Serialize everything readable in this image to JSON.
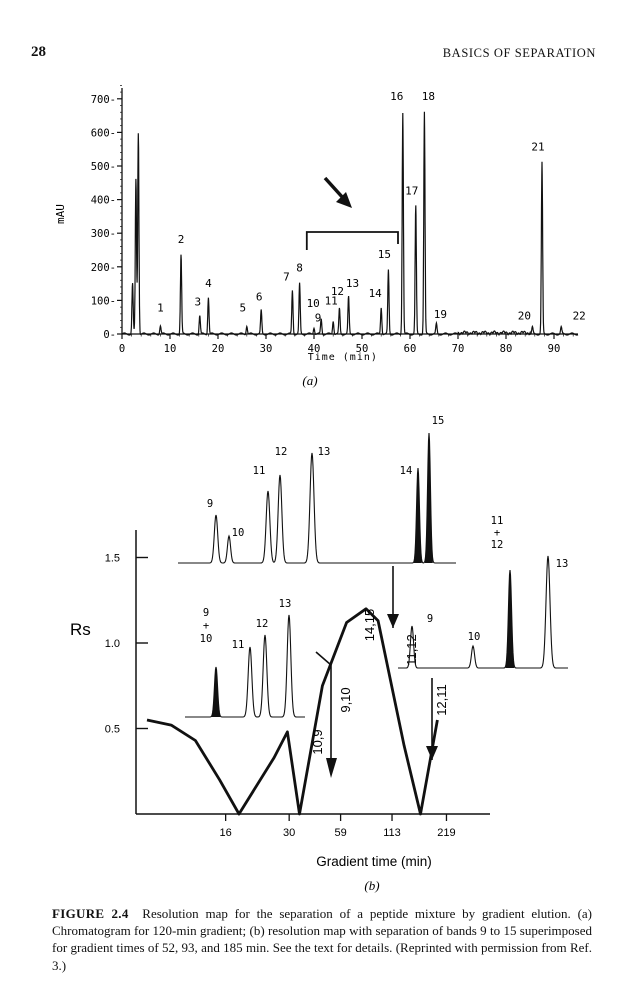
{
  "header": {
    "page_number": "28",
    "running_title": "BASICS OF SEPARATION"
  },
  "chart_data": [
    {
      "type": "line",
      "panel_label": "(a)",
      "xlabel": "Time (min)",
      "ylabel": "mAU",
      "xlim": [
        0,
        95
      ],
      "ylim": [
        0,
        750
      ],
      "x_ticks": [
        "0",
        "10",
        "20",
        "30",
        "40",
        "50",
        "60",
        "70",
        "80",
        "90"
      ],
      "x_tick_values": [
        0,
        10,
        20,
        30,
        40,
        50,
        60,
        70,
        80,
        90
      ],
      "y_ticks": [
        "0",
        "100",
        "200",
        "300",
        "400",
        "500",
        "600",
        "700"
      ],
      "y_tick_values": [
        0,
        100,
        200,
        300,
        400,
        500,
        600,
        700
      ],
      "peaks": [
        {
          "t": 2.2,
          "h": 150,
          "label": ""
        },
        {
          "t": 2.9,
          "h": 460,
          "label": ""
        },
        {
          "t": 3.4,
          "h": 600,
          "label": ""
        },
        {
          "t": 8.0,
          "h": 25,
          "label": "1"
        },
        {
          "t": 12.3,
          "h": 235,
          "label": "2"
        },
        {
          "t": 16.2,
          "h": 55,
          "label": "3"
        },
        {
          "t": 18.0,
          "h": 110,
          "label": "4"
        },
        {
          "t": 26.0,
          "h": 25,
          "label": "5"
        },
        {
          "t": 29.0,
          "h": 70,
          "label": "6"
        },
        {
          "t": 35.5,
          "h": 130,
          "label": "7"
        },
        {
          "t": 37.0,
          "h": 150,
          "label": "8"
        },
        {
          "t": 40.0,
          "h": 20,
          "label": "9"
        },
        {
          "t": 41.5,
          "h": 45,
          "label": "10"
        },
        {
          "t": 44.0,
          "h": 40,
          "label": "11"
        },
        {
          "t": 45.3,
          "h": 75,
          "label": "12"
        },
        {
          "t": 47.2,
          "h": 110,
          "label": "13"
        },
        {
          "t": 54.0,
          "h": 80,
          "label": "14"
        },
        {
          "t": 55.5,
          "h": 190,
          "label": "15"
        },
        {
          "t": 58.5,
          "h": 660,
          "label": "16"
        },
        {
          "t": 61.2,
          "h": 380,
          "label": "17"
        },
        {
          "t": 63.0,
          "h": 660,
          "label": "18"
        },
        {
          "t": 65.5,
          "h": 30,
          "label": "19"
        },
        {
          "t": 85.5,
          "h": 20,
          "label": "20"
        },
        {
          "t": 87.5,
          "h": 510,
          "label": "21"
        },
        {
          "t": 91.5,
          "h": 20,
          "label": "22"
        }
      ],
      "bracket": {
        "from": 38.5,
        "to": 57.5
      }
    },
    {
      "type": "line",
      "panel_label": "(b)",
      "xlabel": "Gradient time (min)",
      "ylabel": "Rs",
      "x_ticks": [
        "16",
        "30",
        "59",
        "113",
        "219"
      ],
      "y_ticks": [
        "0.5",
        "1.0",
        "1.5"
      ],
      "ylim": [
        0,
        1.8
      ],
      "curve": [
        [
          0.0,
          0.55
        ],
        [
          0.4,
          0.52
        ],
        [
          0.8,
          0.43
        ],
        [
          1.2,
          0.2
        ],
        [
          1.52,
          0.0
        ],
        [
          2.1,
          0.33
        ],
        [
          2.32,
          0.48
        ],
        [
          2.52,
          0.0
        ],
        [
          2.9,
          0.75
        ],
        [
          3.3,
          1.12
        ],
        [
          3.62,
          1.2
        ],
        [
          3.82,
          1.13
        ],
        [
          4.25,
          0.4
        ],
        [
          4.52,
          0.0
        ],
        [
          4.8,
          0.55
        ]
      ],
      "crossing_labels": [
        {
          "label": "10,9",
          "x": 2.32
        },
        {
          "label": "9,10",
          "x": 2.52
        },
        {
          "label": "14,15",
          "x": 3.45
        },
        {
          "label": "11,12",
          "x": 3.82
        },
        {
          "label": "12,11",
          "x": 4.52
        }
      ],
      "inset_chromatograms": [
        {
          "gradient_time": 52,
          "peak_labels": [
            "9",
            "10",
            "11",
            "12",
            "13",
            "14",
            "15"
          ]
        },
        {
          "gradient_time": 93,
          "peak_labels": [
            "9 + 10",
            "11",
            "12",
            "13"
          ]
        },
        {
          "gradient_time": 185,
          "peak_labels": [
            "9",
            "10",
            "11 + 12",
            "13"
          ]
        }
      ]
    }
  ],
  "caption": {
    "label": "FIGURE 2.4",
    "text": "Resolution map for the separation of a peptide mixture by gradient elution. (a) Chromatogram for 120-min gradient; (b) resolution map with separation of bands 9 to 15 superimposed for gradient times of 52, 93, and 185 min. See the text for details. (Reprinted with permission from Ref. 3.)"
  }
}
